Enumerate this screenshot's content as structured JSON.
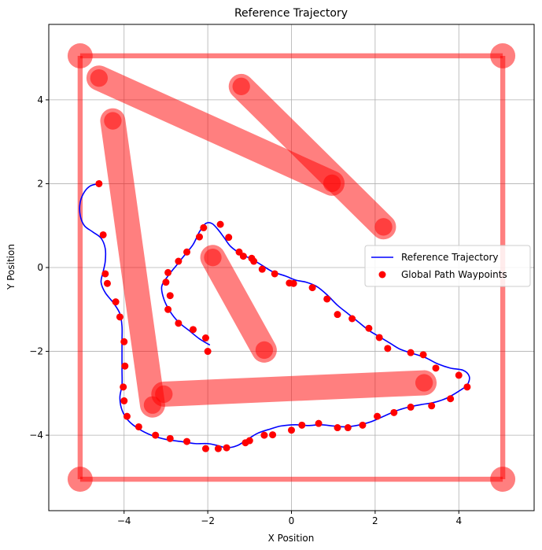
{
  "chart_data": {
    "type": "line",
    "title": "Reference Trajectory",
    "xlabel": "X Position",
    "ylabel": "Y Position",
    "xlim": [
      -5.8,
      5.8
    ],
    "ylim": [
      -5.8,
      5.8
    ],
    "xticks": [
      -4,
      -2,
      0,
      2,
      4
    ],
    "yticks": [
      -4,
      -2,
      0,
      2,
      4
    ],
    "grid": true,
    "legend": "center-right",
    "series": [
      {
        "name": "Reference Trajectory",
        "kind": "line",
        "color": "#0000ff",
        "points": [
          [
            -4.6,
            2.0
          ],
          [
            -4.8,
            1.95
          ],
          [
            -4.95,
            1.8
          ],
          [
            -5.05,
            1.55
          ],
          [
            -5.05,
            1.25
          ],
          [
            -4.95,
            1.0
          ],
          [
            -4.75,
            0.85
          ],
          [
            -4.55,
            0.7
          ],
          [
            -4.45,
            0.45
          ],
          [
            -4.45,
            0.15
          ],
          [
            -4.5,
            -0.1
          ],
          [
            -4.55,
            -0.35
          ],
          [
            -4.45,
            -0.6
          ],
          [
            -4.25,
            -0.85
          ],
          [
            -4.1,
            -1.1
          ],
          [
            -4.05,
            -1.4
          ],
          [
            -4.05,
            -1.75
          ],
          [
            -4.05,
            -2.1
          ],
          [
            -4.05,
            -2.45
          ],
          [
            -4.05,
            -2.8
          ],
          [
            -4.1,
            -3.1
          ],
          [
            -4.05,
            -3.4
          ],
          [
            -3.9,
            -3.65
          ],
          [
            -3.65,
            -3.85
          ],
          [
            -3.35,
            -4.0
          ],
          [
            -3.0,
            -4.1
          ],
          [
            -2.65,
            -4.15
          ],
          [
            -2.3,
            -4.2
          ],
          [
            -2.0,
            -4.2
          ],
          [
            -1.75,
            -4.25
          ],
          [
            -1.55,
            -4.3
          ],
          [
            -1.3,
            -4.25
          ],
          [
            -1.05,
            -4.1
          ],
          [
            -0.8,
            -3.95
          ],
          [
            -0.5,
            -3.85
          ],
          [
            -0.25,
            -3.78
          ],
          [
            0.1,
            -3.75
          ],
          [
            0.4,
            -3.77
          ],
          [
            0.7,
            -3.75
          ],
          [
            1.0,
            -3.78
          ],
          [
            1.3,
            -3.8
          ],
          [
            1.6,
            -3.76
          ],
          [
            1.9,
            -3.68
          ],
          [
            2.2,
            -3.55
          ],
          [
            2.5,
            -3.42
          ],
          [
            2.8,
            -3.33
          ],
          [
            3.1,
            -3.27
          ],
          [
            3.4,
            -3.22
          ],
          [
            3.7,
            -3.12
          ],
          [
            4.0,
            -2.95
          ],
          [
            4.2,
            -2.8
          ],
          [
            4.25,
            -2.6
          ],
          [
            4.1,
            -2.45
          ],
          [
            3.8,
            -2.4
          ],
          [
            3.5,
            -2.3
          ],
          [
            3.2,
            -2.15
          ],
          [
            2.9,
            -2.05
          ],
          [
            2.6,
            -1.95
          ],
          [
            2.35,
            -1.8
          ],
          [
            2.1,
            -1.65
          ],
          [
            1.85,
            -1.5
          ],
          [
            1.6,
            -1.3
          ],
          [
            1.35,
            -1.1
          ],
          [
            1.1,
            -0.9
          ],
          [
            0.85,
            -0.65
          ],
          [
            0.6,
            -0.45
          ],
          [
            0.35,
            -0.35
          ],
          [
            0.1,
            -0.3
          ],
          [
            -0.15,
            -0.2
          ],
          [
            -0.45,
            -0.1
          ],
          [
            -0.7,
            0.05
          ],
          [
            -0.95,
            0.2
          ],
          [
            -1.2,
            0.32
          ],
          [
            -1.45,
            0.5
          ],
          [
            -1.6,
            0.7
          ],
          [
            -1.75,
            0.9
          ],
          [
            -1.9,
            1.05
          ],
          [
            -2.05,
            1.05
          ],
          [
            -2.2,
            0.85
          ],
          [
            -2.35,
            0.55
          ],
          [
            -2.55,
            0.3
          ],
          [
            -2.75,
            0.05
          ],
          [
            -2.95,
            -0.2
          ],
          [
            -3.1,
            -0.45
          ],
          [
            -3.05,
            -0.75
          ],
          [
            -2.9,
            -1.05
          ],
          [
            -2.7,
            -1.3
          ],
          [
            -2.45,
            -1.5
          ],
          [
            -2.2,
            -1.7
          ],
          [
            -1.95,
            -1.85
          ]
        ]
      },
      {
        "name": "Global Path Waypoints",
        "kind": "scatter",
        "color": "#ff0000",
        "points": [
          [
            -4.6,
            2.0
          ],
          [
            -4.5,
            0.78
          ],
          [
            -4.45,
            -0.15
          ],
          [
            -4.4,
            -0.38
          ],
          [
            -4.2,
            -0.82
          ],
          [
            -4.1,
            -1.18
          ],
          [
            -4.0,
            -1.77
          ],
          [
            -3.98,
            -2.35
          ],
          [
            -4.02,
            -2.85
          ],
          [
            -4.0,
            -3.18
          ],
          [
            -3.93,
            -3.55
          ],
          [
            -3.65,
            -3.8
          ],
          [
            -3.25,
            -4.0
          ],
          [
            -2.9,
            -4.08
          ],
          [
            -2.5,
            -4.15
          ],
          [
            -2.05,
            -4.32
          ],
          [
            -1.75,
            -4.32
          ],
          [
            -1.55,
            -4.3
          ],
          [
            -1.1,
            -4.18
          ],
          [
            -1.0,
            -4.13
          ],
          [
            -0.65,
            -4.0
          ],
          [
            -0.45,
            -3.99
          ],
          [
            0.0,
            -3.88
          ],
          [
            0.25,
            -3.76
          ],
          [
            0.65,
            -3.72
          ],
          [
            1.1,
            -3.82
          ],
          [
            1.35,
            -3.82
          ],
          [
            1.7,
            -3.76
          ],
          [
            2.05,
            -3.55
          ],
          [
            2.45,
            -3.46
          ],
          [
            2.85,
            -3.33
          ],
          [
            3.35,
            -3.3
          ],
          [
            3.8,
            -3.13
          ],
          [
            4.2,
            -2.85
          ],
          [
            4.0,
            -2.57
          ],
          [
            3.45,
            -2.4
          ],
          [
            3.15,
            -2.08
          ],
          [
            2.85,
            -2.03
          ],
          [
            2.3,
            -1.93
          ],
          [
            2.1,
            -1.67
          ],
          [
            1.85,
            -1.45
          ],
          [
            1.45,
            -1.22
          ],
          [
            1.1,
            -1.12
          ],
          [
            0.85,
            -0.75
          ],
          [
            0.5,
            -0.48
          ],
          [
            0.05,
            -0.38
          ],
          [
            -0.05,
            -0.37
          ],
          [
            -0.4,
            -0.15
          ],
          [
            -0.7,
            -0.04
          ],
          [
            -0.9,
            0.15
          ],
          [
            -0.95,
            0.22
          ],
          [
            -1.15,
            0.27
          ],
          [
            -1.25,
            0.37
          ],
          [
            -1.5,
            0.72
          ],
          [
            -1.7,
            1.03
          ],
          [
            -2.1,
            0.95
          ],
          [
            -2.2,
            0.73
          ],
          [
            -2.5,
            0.37
          ],
          [
            -2.7,
            0.15
          ],
          [
            -2.95,
            -0.12
          ],
          [
            -3.0,
            -0.35
          ],
          [
            -2.9,
            -0.67
          ],
          [
            -2.95,
            -1.0
          ],
          [
            -2.7,
            -1.33
          ],
          [
            -2.35,
            -1.48
          ],
          [
            -2.05,
            -1.68
          ],
          [
            -2.0,
            -2.0
          ]
        ]
      }
    ],
    "obstacles": [
      {
        "type": "segment",
        "from": [
          -5.05,
          5.05
        ],
        "to": [
          5.05,
          5.05
        ],
        "color": "#ff0000"
      },
      {
        "type": "segment",
        "from": [
          5.05,
          5.05
        ],
        "to": [
          5.05,
          -5.05
        ],
        "color": "#ff0000"
      },
      {
        "type": "segment",
        "from": [
          5.05,
          -5.05
        ],
        "to": [
          -5.05,
          -5.05
        ],
        "color": "#ff0000"
      },
      {
        "type": "segment",
        "from": [
          -5.05,
          -5.05
        ],
        "to": [
          -5.05,
          5.05
        ],
        "color": "#ff0000"
      },
      {
        "type": "capsule",
        "from": [
          -4.6,
          4.52
        ],
        "to": [
          0.97,
          2.01
        ],
        "color": "#ff0000"
      },
      {
        "type": "capsule",
        "from": [
          -1.2,
          4.32
        ],
        "to": [
          2.2,
          0.97
        ],
        "color": "#ff0000"
      },
      {
        "type": "capsule",
        "from": [
          -4.27,
          3.5
        ],
        "to": [
          -3.32,
          -3.28
        ],
        "color": "#ff0000"
      },
      {
        "type": "capsule",
        "from": [
          -1.88,
          0.24
        ],
        "to": [
          -0.65,
          -1.97
        ],
        "color": "#ff0000"
      },
      {
        "type": "capsule",
        "from": [
          -3.05,
          -3.02
        ],
        "to": [
          3.17,
          -2.75
        ],
        "color": "#ff0000"
      }
    ],
    "corner_markers": [
      [
        -5.05,
        5.05
      ],
      [
        5.05,
        5.05
      ],
      [
        -5.05,
        -5.05
      ],
      [
        5.05,
        -5.05
      ]
    ]
  }
}
